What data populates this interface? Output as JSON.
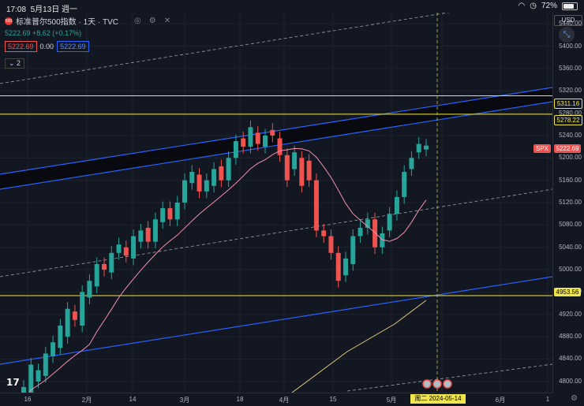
{
  "status_bar": {
    "time": "17:08",
    "date": "5月13日 週一",
    "battery": "72%"
  },
  "symbol": {
    "name": "标准普尔500指数 · 1天 · TVC",
    "logo_text": "500",
    "price_line": "5222.69 +8.62 (+0.17%)"
  },
  "order": {
    "sell": "5222.69",
    "spread": "0.00",
    "buy": "5222.69"
  },
  "indicator_toggle": "2",
  "currency": "USD",
  "price_axis": [
    "5440.00",
    "5400.00",
    "5360.00",
    "5320.00",
    "5280.00",
    "5240.00",
    "5200.00",
    "5160.00",
    "5120.00",
    "5080.00",
    "5040.00",
    "5000.00",
    "4960.00",
    "4920.00",
    "4880.00",
    "4840.00",
    "4800.00"
  ],
  "price_labels": {
    "level1": "5311.16",
    "level2": "5278.22",
    "symbol": "SPX",
    "current": "5222.69",
    "level3": "4953.56"
  },
  "time_axis": [
    "16",
    "2月",
    "14",
    "3月",
    "18",
    "4月",
    "15",
    "5月",
    "6月",
    "1"
  ],
  "crosshair_date": "周二  2024-05-14",
  "colors": {
    "up": "#26a69a",
    "down": "#ef5350",
    "channel": "#2962ff",
    "hline": "#f0e54a",
    "ma": "#f48fb1"
  },
  "chart_data": {
    "type": "candlestick",
    "ylim": [
      4780,
      5460
    ],
    "horizontal_levels": [
      5311.16,
      5278.22,
      4953.56
    ],
    "candles": [
      [
        4740,
        4790
      ],
      [
        4780,
        4830
      ],
      [
        4800,
        4820
      ],
      [
        4810,
        4850
      ],
      [
        4845,
        4870
      ],
      [
        4860,
        4900
      ],
      [
        4880,
        4930
      ],
      [
        4925,
        4910
      ],
      [
        4900,
        4960
      ],
      [
        4950,
        4980
      ],
      [
        4970,
        5010
      ],
      [
        5010,
        5000
      ],
      [
        4995,
        5030
      ],
      [
        5030,
        5045
      ],
      [
        5040,
        5025
      ],
      [
        5020,
        5060
      ],
      [
        5050,
        5070
      ],
      [
        5075,
        5050
      ],
      [
        5050,
        5090
      ],
      [
        5085,
        5110
      ],
      [
        5110,
        5090
      ],
      [
        5090,
        5120
      ],
      [
        5120,
        5160
      ],
      [
        5155,
        5175
      ],
      [
        5170,
        5140
      ],
      [
        5140,
        5160
      ],
      [
        5150,
        5180
      ],
      [
        5185,
        5160
      ],
      [
        5160,
        5200
      ],
      [
        5200,
        5230
      ],
      [
        5235,
        5220
      ],
      [
        5220,
        5255
      ],
      [
        5245,
        5225
      ],
      [
        5220,
        5240
      ],
      [
        5250,
        5240
      ],
      [
        5235,
        5205
      ],
      [
        5205,
        5160
      ],
      [
        5180,
        5210
      ],
      [
        5200,
        5150
      ],
      [
        5195,
        5160
      ],
      [
        5160,
        5070
      ],
      [
        5070,
        5060
      ],
      [
        5060,
        5030
      ],
      [
        5030,
        4980
      ],
      [
        4990,
        5020
      ],
      [
        5010,
        5060
      ],
      [
        5060,
        5075
      ],
      [
        5075,
        5090
      ],
      [
        5090,
        5040
      ],
      [
        5040,
        5065
      ],
      [
        5070,
        5100
      ],
      [
        5100,
        5130
      ],
      [
        5130,
        5175
      ],
      [
        5180,
        5200
      ],
      [
        5210,
        5225
      ],
      [
        5215,
        5222
      ]
    ]
  }
}
